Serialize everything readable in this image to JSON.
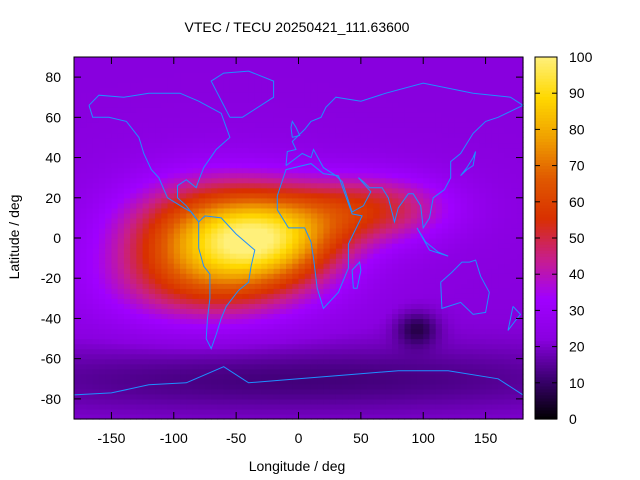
{
  "chart_data": {
    "type": "heatmap",
    "title": "VTEC / TECU 20250421_111.63600",
    "xlabel": "Longitude / deg",
    "ylabel": "Latitude / deg",
    "xlim": [
      -180,
      180
    ],
    "ylim": [
      -90,
      90
    ],
    "x_ticks": [
      -150,
      -100,
      -50,
      0,
      50,
      100,
      150
    ],
    "y_ticks": [
      -80,
      -60,
      -40,
      -20,
      0,
      20,
      40,
      60,
      80
    ],
    "colorbar": {
      "range": [
        0,
        100
      ],
      "ticks": [
        0,
        10,
        20,
        30,
        40,
        50,
        60,
        70,
        80,
        90,
        100
      ]
    },
    "grid": false,
    "features": [
      {
        "lon": -60,
        "lat": 0,
        "sigma_lon": 55,
        "sigma_lat": 20,
        "amp": 55
      },
      {
        "lon": -20,
        "lat": 0,
        "sigma_lon": 40,
        "sigma_lat": 14,
        "amp": 30
      },
      {
        "lon": 60,
        "lat": 15,
        "sigma_lon": 45,
        "sigma_lat": 12,
        "amp": 28
      },
      {
        "lon": -80,
        "lat": -25,
        "sigma_lon": 60,
        "sigma_lat": 15,
        "amp": 15
      },
      {
        "lon": 95,
        "lat": -45,
        "sigma_lon": 12,
        "sigma_lat": 6,
        "amp": -14
      },
      {
        "lon": 0,
        "lat": -70,
        "sigma_lon": 200,
        "sigma_lat": 12,
        "amp": -10
      }
    ],
    "background_value": 22
  },
  "colors": {
    "palette": [
      "#000000",
      "#3b0070",
      "#8a00e0",
      "#a000ff",
      "#c81e8a",
      "#d93000",
      "#e05a00",
      "#f0a000",
      "#ffd800",
      "#fff07a"
    ],
    "coastline": "#1e8fff"
  }
}
